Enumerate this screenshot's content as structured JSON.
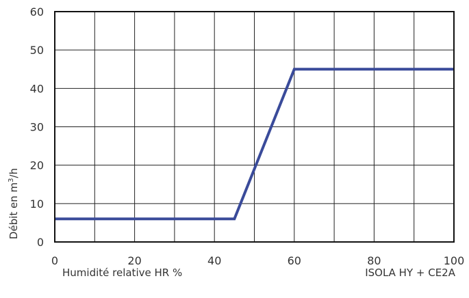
{
  "chart_data": {
    "type": "line",
    "xlabel": "Humidité relative HR %",
    "ylabel_prefix": "Débit en m",
    "ylabel_sup": "3",
    "ylabel_suffix": "/h",
    "caption": "ISOLA HY + CE2A",
    "xlim": [
      0,
      100
    ],
    "ylim": [
      0,
      60
    ],
    "x_ticks": [
      0,
      20,
      40,
      60,
      80,
      100
    ],
    "y_ticks": [
      0,
      10,
      20,
      30,
      40,
      50,
      60
    ],
    "x_grid": [
      0,
      10,
      20,
      30,
      40,
      50,
      60,
      70,
      80,
      90,
      100
    ],
    "grid": true,
    "series": [
      {
        "color": "#3a4b9a",
        "x": [
          0,
          45,
          60,
          100
        ],
        "y": [
          6,
          6,
          45,
          45
        ]
      }
    ]
  }
}
